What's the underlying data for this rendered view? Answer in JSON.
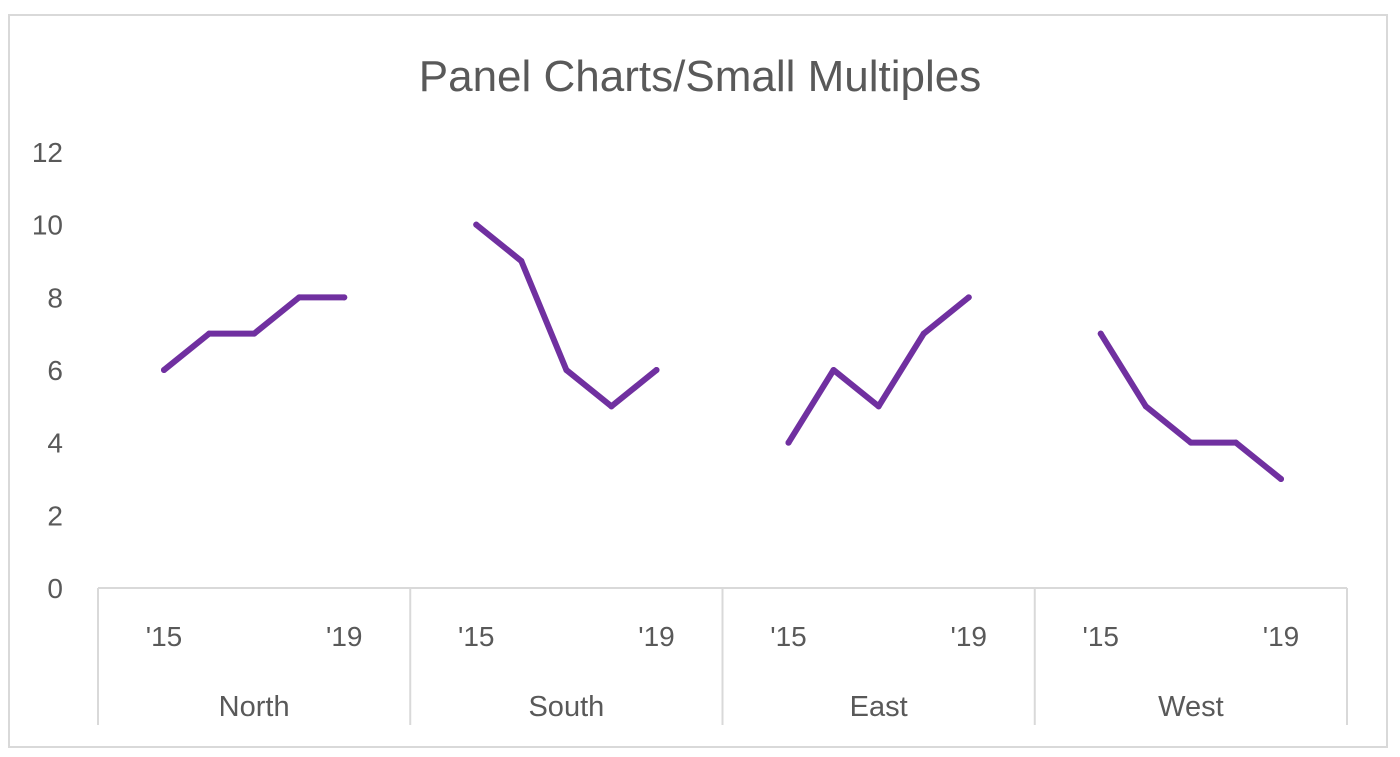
{
  "chart_data": {
    "type": "line",
    "title": "Panel Charts/Small Multiples",
    "ylim": [
      0,
      12
    ],
    "yticks": [
      "0",
      "2",
      "4",
      "6",
      "8",
      "10",
      "12"
    ],
    "grid": false,
    "legend": "none",
    "line_color": "#7030a0",
    "panels": [
      {
        "name": "North",
        "x_labels": [
          "'15",
          "",
          "",
          "",
          "'19"
        ],
        "values": [
          6,
          7,
          7,
          8,
          8
        ]
      },
      {
        "name": "South",
        "x_labels": [
          "'15",
          "",
          "",
          "",
          "'19"
        ],
        "values": [
          10,
          9,
          6,
          5,
          6
        ]
      },
      {
        "name": "East",
        "x_labels": [
          "'15",
          "",
          "",
          "",
          "'19"
        ],
        "values": [
          4,
          6,
          5,
          7,
          8
        ]
      },
      {
        "name": "West",
        "x_labels": [
          "'15",
          "",
          "",
          "",
          "'19"
        ],
        "values": [
          7,
          5,
          4,
          4,
          3
        ]
      }
    ]
  }
}
